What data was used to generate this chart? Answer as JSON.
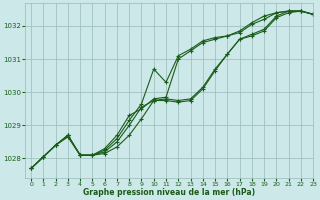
{
  "title": "Graphe pression niveau de la mer (hPa)",
  "bg_color": "#cce8e8",
  "grid_color": "#99bbbb",
  "line_color": "#1a5c1a",
  "xlim": [
    -0.5,
    23
  ],
  "ylim": [
    1027.4,
    1032.7
  ],
  "yticks": [
    1028,
    1029,
    1030,
    1031,
    1032
  ],
  "xticks": [
    0,
    1,
    2,
    3,
    4,
    5,
    6,
    7,
    8,
    9,
    10,
    11,
    12,
    13,
    14,
    15,
    16,
    17,
    18,
    19,
    20,
    21,
    22,
    23
  ],
  "hours": [
    0,
    1,
    2,
    3,
    4,
    5,
    6,
    7,
    8,
    9,
    10,
    11,
    12,
    13,
    14,
    15,
    16,
    17,
    18,
    19,
    20,
    21,
    22,
    23
  ],
  "line1": [
    1027.7,
    1028.05,
    1028.4,
    1028.65,
    1028.1,
    1028.1,
    1028.15,
    1028.35,
    1028.7,
    1029.2,
    1029.75,
    1029.75,
    1029.7,
    1029.75,
    1030.1,
    1030.65,
    1031.15,
    1031.6,
    1031.7,
    1031.85,
    1032.25,
    1032.4,
    1032.45,
    1032.35
  ],
  "line2": [
    1027.7,
    1028.05,
    1028.4,
    1028.7,
    1028.1,
    1028.1,
    1028.2,
    1028.5,
    1029.0,
    1029.55,
    1029.75,
    1029.8,
    1029.75,
    1029.8,
    1030.15,
    1030.7,
    1031.15,
    1031.6,
    1031.75,
    1031.9,
    1032.3,
    1032.45,
    1032.45,
    1032.35
  ],
  "line3": [
    1027.7,
    1028.05,
    1028.4,
    1028.7,
    1028.1,
    1028.1,
    1028.25,
    1028.6,
    1029.15,
    1029.65,
    1030.7,
    1030.3,
    1031.1,
    1031.3,
    1031.55,
    1031.65,
    1031.7,
    1031.85,
    1032.1,
    1032.3,
    1032.4,
    1032.45,
    1032.45,
    1032.35
  ],
  "line4": [
    1027.7,
    1028.05,
    1028.4,
    1028.7,
    1028.1,
    1028.1,
    1028.3,
    1028.7,
    1029.3,
    1029.5,
    1029.8,
    1029.85,
    1031.0,
    1031.25,
    1031.5,
    1031.6,
    1031.7,
    1031.8,
    1032.05,
    1032.2,
    1032.4,
    1032.45,
    1032.45,
    1032.35
  ]
}
